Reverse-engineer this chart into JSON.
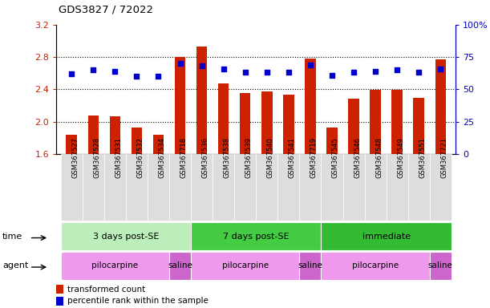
{
  "title": "GDS3827 / 72022",
  "samples": [
    "GSM367527",
    "GSM367528",
    "GSM367531",
    "GSM367532",
    "GSM367534",
    "GSM367718",
    "GSM367536",
    "GSM367538",
    "GSM367539",
    "GSM367540",
    "GSM367541",
    "GSM367719",
    "GSM367545",
    "GSM367546",
    "GSM367548",
    "GSM367549",
    "GSM367551",
    "GSM367721"
  ],
  "transformed_count": [
    1.84,
    2.08,
    2.07,
    1.93,
    1.84,
    2.8,
    2.93,
    2.47,
    2.35,
    2.37,
    2.33,
    2.78,
    1.93,
    2.28,
    2.39,
    2.39,
    2.29,
    2.77
  ],
  "percentile_rank": [
    62,
    65,
    64,
    60,
    60,
    70,
    68,
    66,
    63,
    63,
    63,
    69,
    61,
    63,
    64,
    65,
    63,
    66
  ],
  "ylim_left": [
    1.6,
    3.2
  ],
  "ylim_right": [
    0,
    100
  ],
  "yticks_left": [
    1.6,
    2.0,
    2.4,
    2.8,
    3.2
  ],
  "yticks_right": [
    0,
    25,
    50,
    75,
    100
  ],
  "bar_color": "#CC2200",
  "dot_color": "#0000CC",
  "bg_color": "#FFFFFF",
  "plot_bg": "#FFFFFF",
  "time_groups": [
    {
      "label": "3 days post-SE",
      "start": 0,
      "end": 6,
      "color": "#BBEEBB"
    },
    {
      "label": "7 days post-SE",
      "start": 6,
      "end": 12,
      "color": "#44CC44"
    },
    {
      "label": "immediate",
      "start": 12,
      "end": 18,
      "color": "#33BB33"
    }
  ],
  "agent_groups": [
    {
      "label": "pilocarpine",
      "start": 0,
      "end": 5,
      "color": "#EE99EE"
    },
    {
      "label": "saline",
      "start": 5,
      "end": 6,
      "color": "#CC66CC"
    },
    {
      "label": "pilocarpine",
      "start": 6,
      "end": 11,
      "color": "#EE99EE"
    },
    {
      "label": "saline",
      "start": 11,
      "end": 12,
      "color": "#CC66CC"
    },
    {
      "label": "pilocarpine",
      "start": 12,
      "end": 17,
      "color": "#EE99EE"
    },
    {
      "label": "saline",
      "start": 17,
      "end": 18,
      "color": "#CC66CC"
    }
  ],
  "legend_bar_label": "transformed count",
  "legend_dot_label": "percentile rank within the sample",
  "time_label": "time",
  "agent_label": "agent"
}
